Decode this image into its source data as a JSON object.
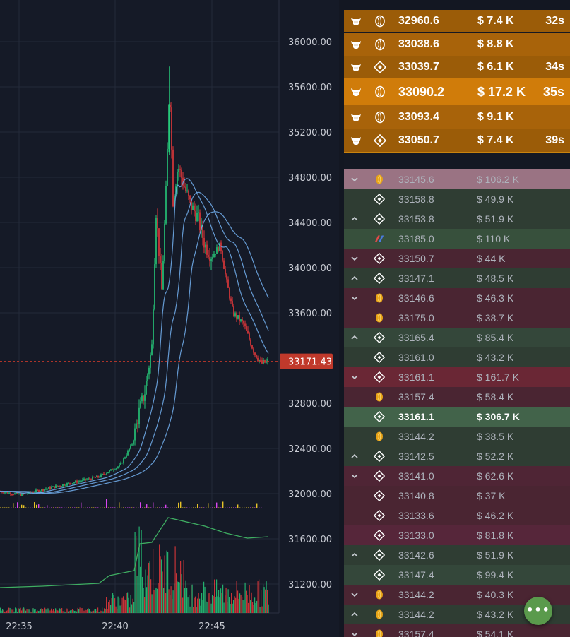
{
  "chart": {
    "price_ticks": [
      "36000.00",
      "35600.00",
      "35200.00",
      "34800.00",
      "34400.00",
      "34000.00",
      "33600.00",
      "32800.00",
      "32400.00",
      "32000.00",
      "31600.00",
      "31200.00"
    ],
    "time_ticks": [
      "22:35",
      "22:40",
      "22:45"
    ],
    "current_price": "33171.43",
    "colors": {
      "up": "#26c97a",
      "down": "#e5383b",
      "ma": "#6ea8e6",
      "current": "#c0392b"
    }
  },
  "big_trades": [
    {
      "side_icon": "bull-icon",
      "exchange_icon": "coin-icon",
      "price": "32960.6",
      "amount": "$ 7.4 K",
      "age": "32s"
    },
    {
      "side_icon": "bull-icon",
      "exchange_icon": "coin-icon",
      "price": "33038.6",
      "amount": "$ 8.8 K",
      "age": ""
    },
    {
      "side_icon": "bull-icon",
      "exchange_icon": "binance-icon",
      "price": "33039.7",
      "amount": "$ 6.1 K",
      "age": "34s"
    },
    {
      "side_icon": "bull-icon",
      "exchange_icon": "coin-icon",
      "price": "33090.2",
      "amount": "$ 17.2 K",
      "age": "35s"
    },
    {
      "side_icon": "bull-icon",
      "exchange_icon": "coin-icon",
      "price": "33093.4",
      "amount": "$ 9.1 K",
      "age": ""
    },
    {
      "side_icon": "bull-icon",
      "exchange_icon": "binance-icon",
      "price": "33050.7",
      "amount": "$ 7.4 K",
      "age": "39s"
    }
  ],
  "trades": [
    {
      "dir": "down",
      "exchange": "coin-icon",
      "price": "33145.6",
      "amount": "$ 106.2 K",
      "bg": "#9a7383"
    },
    {
      "dir": "",
      "exchange": "binance-icon",
      "price": "33158.8",
      "amount": "$ 49.9 K",
      "bg": "#2f3d33"
    },
    {
      "dir": "up",
      "exchange": "binance-icon",
      "price": "33153.8",
      "amount": "$ 51.9 K",
      "bg": "#2f3d33"
    },
    {
      "dir": "",
      "exchange": "bitmex-icon",
      "price": "33185.0",
      "amount": "$ 110 K",
      "bg": "#37503c"
    },
    {
      "dir": "down",
      "exchange": "binance-icon",
      "price": "33150.7",
      "amount": "$ 44 K",
      "bg": "#4a2532"
    },
    {
      "dir": "up",
      "exchange": "binance-icon",
      "price": "33147.1",
      "amount": "$ 48.5 K",
      "bg": "#2f3d33"
    },
    {
      "dir": "down",
      "exchange": "coin-icon",
      "price": "33146.6",
      "amount": "$ 46.3 K",
      "bg": "#4a2532"
    },
    {
      "dir": "",
      "exchange": "coin-icon",
      "price": "33175.0",
      "amount": "$ 38.7 K",
      "bg": "#4a2532"
    },
    {
      "dir": "up",
      "exchange": "binance-icon",
      "price": "33165.4",
      "amount": "$ 85.4 K",
      "bg": "#34473a"
    },
    {
      "dir": "",
      "exchange": "binance-icon",
      "price": "33161.0",
      "amount": "$ 43.2 K",
      "bg": "#2f3d33"
    },
    {
      "dir": "down",
      "exchange": "binance-icon",
      "price": "33161.1",
      "amount": "$ 161.7 K",
      "bg": "#6a2735"
    },
    {
      "dir": "",
      "exchange": "coin-icon",
      "price": "33157.4",
      "amount": "$ 58.4 K",
      "bg": "#4a2532"
    },
    {
      "dir": "",
      "exchange": "binance-icon",
      "price": "33161.1",
      "amount": "$ 306.7 K",
      "bg": "#42634a"
    },
    {
      "dir": "",
      "exchange": "coin-icon",
      "price": "33144.2",
      "amount": "$ 38.5 K",
      "bg": "#2f3d33"
    },
    {
      "dir": "up",
      "exchange": "binance-icon",
      "price": "33142.5",
      "amount": "$ 52.2 K",
      "bg": "#2f3d33"
    },
    {
      "dir": "down",
      "exchange": "binance-icon",
      "price": "33141.0",
      "amount": "$ 62.6 K",
      "bg": "#4f2535"
    },
    {
      "dir": "",
      "exchange": "binance-icon",
      "price": "33140.8",
      "amount": "$ 37 K",
      "bg": "#4a2532"
    },
    {
      "dir": "",
      "exchange": "binance-icon",
      "price": "33133.6",
      "amount": "$ 46.2 K",
      "bg": "#4a2532"
    },
    {
      "dir": "",
      "exchange": "binance-icon",
      "price": "33133.0",
      "amount": "$ 81.8 K",
      "bg": "#56263a"
    },
    {
      "dir": "up",
      "exchange": "binance-icon",
      "price": "33142.6",
      "amount": "$ 51.9 K",
      "bg": "#2f3d33"
    },
    {
      "dir": "",
      "exchange": "binance-icon",
      "price": "33147.4",
      "amount": "$ 99.4 K",
      "bg": "#34473a"
    },
    {
      "dir": "down",
      "exchange": "coin-icon",
      "price": "33144.2",
      "amount": "$ 40.3 K",
      "bg": "#4a2532"
    },
    {
      "dir": "up",
      "exchange": "coin-icon",
      "price": "33144.2",
      "amount": "$ 43.2 K",
      "bg": "#2f3d33"
    },
    {
      "dir": "down",
      "exchange": "coin-icon",
      "price": "33157.4",
      "amount": "$ 54.1 K",
      "bg": "#4a2532"
    }
  ],
  "fab": {
    "label": "•••"
  }
}
